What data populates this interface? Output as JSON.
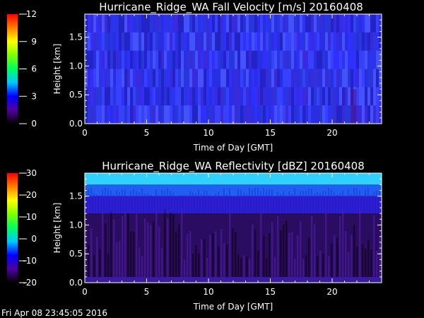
{
  "footer_timestamp": "Fri Apr 08 23:45:05 2016",
  "chart_data": [
    {
      "type": "heatmap",
      "title": "Hurricane_Ridge_WA Fall Velocity [m/s] 20160408",
      "xlabel": "Time of Day [GMT]",
      "ylabel": "Height [km]",
      "xlim": [
        0,
        24
      ],
      "ylim": [
        0,
        1.9
      ],
      "xticks": [
        0,
        5,
        10,
        15,
        20
      ],
      "xtick_labels": [
        "0",
        "5",
        "10",
        "15",
        "20"
      ],
      "yticks": [
        0.0,
        0.5,
        1.0,
        1.5
      ],
      "ytick_labels": [
        "0.0",
        "0.5",
        "1.0",
        "1.5"
      ],
      "colorbar": {
        "min": 0,
        "max": 12,
        "ticks": [
          0,
          3,
          6,
          9,
          12
        ],
        "tick_labels": [
          "0",
          "3",
          "6",
          "9",
          "12"
        ],
        "colors": [
          "#000000",
          "#5000a0",
          "#0000ff",
          "#00c8ff",
          "#00ff60",
          "#80ff00",
          "#ffff00",
          "#ff8000",
          "#ff0000"
        ]
      },
      "dominant_value": "approximately 2 m/s (blue) throughout",
      "cell_colors": [
        "#2a2ee0",
        "#3030ff",
        "#2838d8",
        "#3a44ff",
        "#2222c0",
        "#3c2ad8",
        "#4a58ff"
      ]
    },
    {
      "type": "heatmap",
      "title": "Hurricane_Ridge_WA Reflectivity [dBZ] 20160408",
      "xlabel": "Time of Day [GMT]",
      "ylabel": "Height [km]",
      "xlim": [
        0,
        24
      ],
      "ylim": [
        0,
        1.9
      ],
      "xticks": [
        0,
        5,
        10,
        15,
        20
      ],
      "xtick_labels": [
        "0",
        "5",
        "10",
        "15",
        "20"
      ],
      "yticks": [
        0.0,
        0.5,
        1.0,
        1.5
      ],
      "ytick_labels": [
        "0.0",
        "0.5",
        "1.0",
        "1.5"
      ],
      "colorbar": {
        "min": -20,
        "max": 30,
        "ticks": [
          -20,
          -10,
          0,
          10,
          20,
          30
        ],
        "tick_labels": [
          "-20",
          "-10",
          "0",
          "10",
          "20",
          "30"
        ],
        "colors": [
          "#000000",
          "#5000a0",
          "#0000ff",
          "#00c8ff",
          "#00ff60",
          "#80ff00",
          "#ffff00",
          "#ff8000",
          "#ff0000"
        ]
      },
      "height_profile": [
        {
          "height_range": [
            1.7,
            1.9
          ],
          "approx_dbz": -2,
          "color": "#30d0ff"
        },
        {
          "height_range": [
            1.5,
            1.7
          ],
          "approx_dbz": -8,
          "color": "#2060f0"
        },
        {
          "height_range": [
            1.2,
            1.5
          ],
          "approx_dbz": -12,
          "color": "#3018c8"
        },
        {
          "height_range": [
            0.1,
            1.2
          ],
          "approx_dbz": -17,
          "color": "#2a0c60"
        },
        {
          "height_range": [
            0.0,
            0.1
          ],
          "approx_dbz": -12,
          "color": "#3a1aa0"
        }
      ]
    }
  ]
}
